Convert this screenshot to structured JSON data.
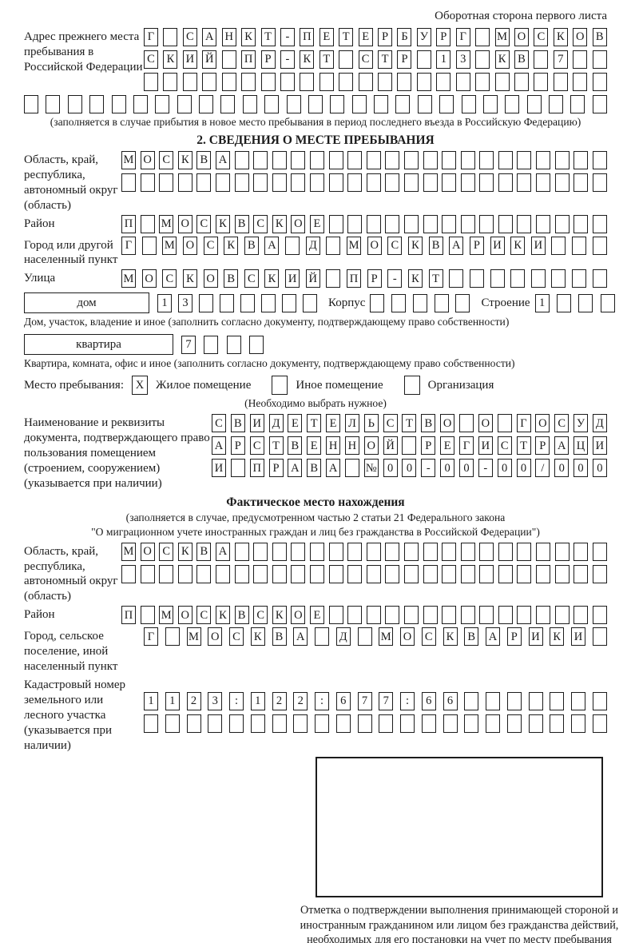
{
  "header": {
    "note": "Оборотная сторона первого листа"
  },
  "prev_address": {
    "label": "Адрес прежнего места пребывания в Российской Федерации",
    "row1": "Г САНКТ-ПЕТЕРБУРГ МОСКОВ",
    "row2": "СКИЙ ПР-КТ СТР 13 КВ 7  ",
    "row3": "                        ",
    "row4": "                           ",
    "note": "(заполняется в случае прибытия в новое место пребывания в период последнего въезда в Российскую Федерацию)"
  },
  "section2": {
    "title": "2. СВЕДЕНИЯ О МЕСТЕ ПРЕБЫВАНИЯ",
    "region": {
      "label": "Область, край, республика, автономный округ (область)",
      "row1": "МОСКВА                    ",
      "row2": "                          "
    },
    "district": {
      "label": "Район",
      "row": "П МОСКВСКОЕ               "
    },
    "city": {
      "label": "Город или другой населенный пункт",
      "row": "Г МОСКВА Д МОСКВАРИКИ   "
    },
    "street": {
      "label": "Улица",
      "row": "МОСКОВСКИЙ ПР-КТ        "
    },
    "house": {
      "box_label": "дом",
      "cells": "13      ",
      "korpus_label": "Корпус",
      "korpus_cells": "     ",
      "stroenie_label": "Строение",
      "stroenie_cells": "1   ",
      "note": "Дом, участок, владение и иное (заполнить согласно документу, подтверждающему право собственности)"
    },
    "apartment": {
      "box_label": "квартира",
      "cells": "7   ",
      "note": "Квартира, комната, офис и иное (заполнить согласно документу, подтверждающему право собственности)"
    },
    "stay_type": {
      "label": "Место пребывания:",
      "option1": {
        "mark": "X",
        "label": "Жилое помещение"
      },
      "option2": {
        "mark": "",
        "label": "Иное помещение"
      },
      "option3": {
        "mark": "",
        "label": "Организация"
      },
      "note": "(Необходимо выбрать нужное)"
    },
    "document": {
      "label": "Наименование и реквизиты документа, подтверждающего право пользования помещением (строением, сооружением) (указывается при наличии)",
      "row1": "СВИДЕТЕЛЬСТВО О ГОСУД",
      "row2": "АРСТВЕННОЙ РЕГИСТРАЦИ",
      "row3": "И ПРАВА №00-00-00/000"
    }
  },
  "actual_location": {
    "title": "Фактическое место нахождения",
    "note_line1": "(заполняется в случае, предусмотренном частью 2 статьи 21 Федерального закона",
    "note_line2": "\"О миграционном учете иностранных граждан и лиц без гражданства в Российской Федерации\")",
    "region": {
      "label": "Область, край, республика, автономный округ (область)",
      "row1": "МОСКВА                    ",
      "row2": "                          "
    },
    "district": {
      "label": "Район",
      "row": "П МОСКВСКОЕ               "
    },
    "city": {
      "label": "Город, сельское поселение, иной населенный пункт",
      "row": "Г МОСКВА Д МОСКВАРИКИ "
    },
    "cadastral": {
      "label": "Кадастровый номер земельного или лесного участка (указывается при наличии)",
      "row1": "1123:122:677:66       ",
      "row2": "                      "
    },
    "stamp_box_note": "Отметка о подтверждении выполнения принимающей стороной и иностранным гражданином или лицом без гражданства действий, необходимых для его постановки на учет по месту пребывания"
  }
}
